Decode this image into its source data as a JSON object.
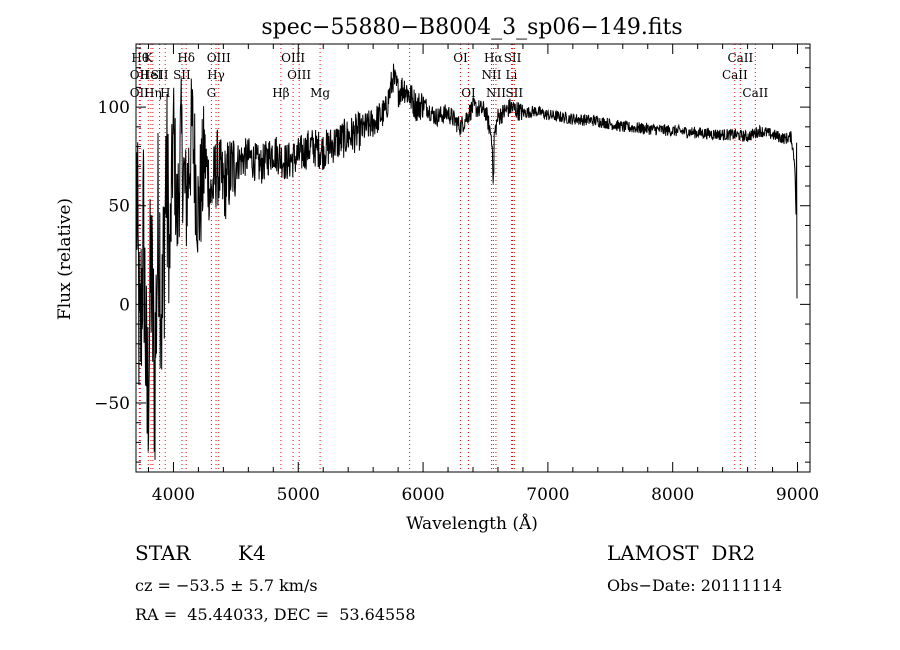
{
  "chart_data": {
    "type": "line",
    "title": "spec−55880−B8004_3_sp06−149.fits",
    "xlabel": "Wavelength (Å)",
    "ylabel": "Flux (relative)",
    "xlim": [
      3700,
      9100
    ],
    "ylim": [
      -85,
      132
    ],
    "x_ticks": [
      4000,
      5000,
      6000,
      7000,
      8000,
      9000
    ],
    "x_tick_labels": [
      "4000",
      "5000",
      "6000",
      "7000",
      "8000",
      "9000"
    ],
    "y_ticks": [
      -50,
      0,
      50,
      100
    ],
    "y_tick_labels": [
      "−50",
      "0",
      "50",
      "100"
    ],
    "grid": false,
    "colors": {
      "spectrum": "#000000",
      "lines": "#ff0000",
      "axes": "#000000"
    },
    "series": [
      {
        "x": [
          3705,
          3730,
          3760,
          3790,
          3820,
          3850,
          3880,
          3910,
          3940,
          3970,
          4000,
          4030,
          4060,
          4100,
          4150,
          4200,
          4250,
          4300,
          4350,
          4400,
          4500,
          4600,
          4700,
          4800,
          4900,
          5000,
          5100,
          5200,
          5300,
          5400,
          5500,
          5600,
          5700,
          5760,
          5800,
          5850,
          5900,
          5950,
          6000,
          6100,
          6200,
          6300,
          6400,
          6500,
          6560,
          6600,
          6700,
          6800,
          6900,
          7000,
          7200,
          7400,
          7600,
          7800,
          8000,
          8200,
          8400,
          8500,
          8600,
          8700,
          8800,
          8900,
          8950,
          8980,
          9000
        ],
        "y": [
          60,
          -30,
          40,
          -60,
          20,
          -40,
          50,
          -10,
          70,
          20,
          90,
          40,
          85,
          50,
          90,
          45,
          75,
          55,
          70,
          60,
          72,
          75,
          70,
          78,
          72,
          75,
          80,
          78,
          82,
          85,
          88,
          92,
          98,
          115,
          108,
          110,
          105,
          100,
          102,
          95,
          97,
          90,
          100,
          98,
          82,
          95,
          100,
          97,
          98,
          96,
          94,
          93,
          90,
          89,
          88,
          87,
          86,
          86,
          85,
          88,
          86,
          84,
          85,
          70,
          3
        ]
      }
    ],
    "spectral_lines": [
      {
        "x": 3734,
        "label": "Hθ",
        "row": 1
      },
      {
        "x": 3727,
        "label": "OII",
        "row": 2
      },
      {
        "x": 3727,
        "label": "OII",
        "row": 3
      },
      {
        "x": 3798,
        "label": "K",
        "row": 1
      },
      {
        "x": 3820,
        "label": "HeI",
        "row": 2
      },
      {
        "x": 3835,
        "label": "Hη",
        "row": 3
      },
      {
        "x": 3889,
        "label": "SII",
        "row": 2
      },
      {
        "x": 3934,
        "label": "H",
        "row": 3
      },
      {
        "x": 4102,
        "label": "Hδ",
        "row": 1
      },
      {
        "x": 4068,
        "label": "SII",
        "row": 2
      },
      {
        "x": 4363,
        "label": "OIII",
        "row": 1
      },
      {
        "x": 4341,
        "label": "Hγ",
        "row": 2
      },
      {
        "x": 4304,
        "label": "G",
        "row": 3
      },
      {
        "x": 4959,
        "label": "OIII",
        "row": 1
      },
      {
        "x": 5007,
        "label": "OIII",
        "row": 2
      },
      {
        "x": 4861,
        "label": "Hβ",
        "row": 3
      },
      {
        "x": 5175,
        "label": "Mg",
        "row": 3
      },
      {
        "x": 5892,
        "label": "",
        "row": 0
      },
      {
        "x": 6300,
        "label": "OI",
        "row": 1
      },
      {
        "x": 6364,
        "label": "OI",
        "row": 3
      },
      {
        "x": 6563,
        "label": "Hα",
        "row": 1
      },
      {
        "x": 6548,
        "label": "NII",
        "row": 2
      },
      {
        "x": 6584,
        "label": "NII",
        "row": 3
      },
      {
        "x": 6717,
        "label": "SII",
        "row": 1
      },
      {
        "x": 6708,
        "label": "Li",
        "row": 2
      },
      {
        "x": 6731,
        "label": "SII",
        "row": 3
      },
      {
        "x": 8498,
        "label": "CaII",
        "row": 2
      },
      {
        "x": 8542,
        "label": "CaII",
        "row": 1
      },
      {
        "x": 8662,
        "label": "CaII",
        "row": 3
      }
    ]
  },
  "info": {
    "object_class": "STAR",
    "subclass": "K4",
    "survey": "LAMOST  DR2",
    "cz": "cz = −53.5 ± 5.7 km/s",
    "obs_date": "Obs−Date: 20111114",
    "coords": "RA =  45.44033, DEC =  53.64558"
  }
}
